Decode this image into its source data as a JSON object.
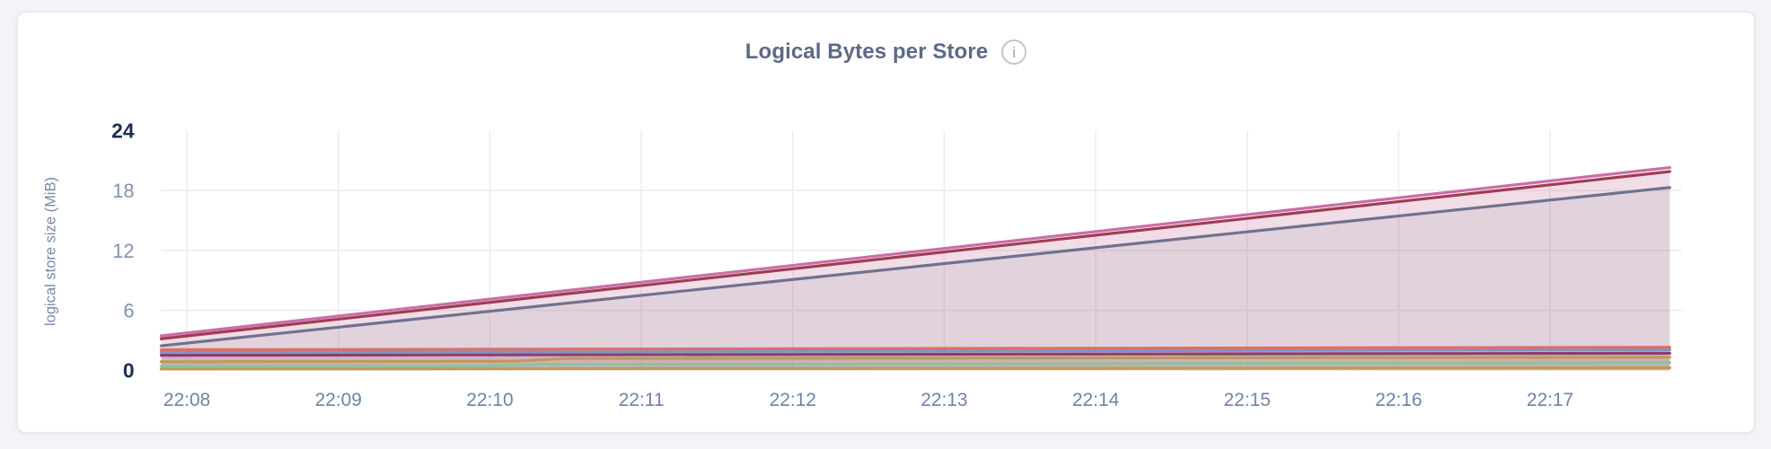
{
  "colors": {
    "page_bg": "#f2f4f8",
    "card_bg": "#ffffff",
    "card_border": "#e4e5e9",
    "title": "#5c6a86",
    "grid": "#ececee",
    "ytick_major": "#1e2f52",
    "ytick_minor": "#8292ab",
    "xtick": "#6d84a4",
    "ylabel": "#7889a9",
    "info_icon_border": "#c5c6cb",
    "info_icon_glyph": "#9b9ca2"
  },
  "icons": {
    "info_glyph": "i"
  },
  "chart_data": {
    "type": "area",
    "title": "Logical Bytes per Store",
    "ylabel": "logical store size (MiB)",
    "xlabel": "",
    "ylim": [
      0,
      24
    ],
    "xlim": [
      7.83,
      17.79
    ],
    "grid": true,
    "legend": false,
    "fill_opacity": 0.1,
    "x_unit": "time (hh:mm), minutes within hour 22",
    "y_ticks": [
      {
        "v": 0,
        "label": "0",
        "major": true,
        "grid": false
      },
      {
        "v": 6,
        "label": "6",
        "major": false,
        "grid": true
      },
      {
        "v": 12,
        "label": "12",
        "major": false,
        "grid": true
      },
      {
        "v": 18,
        "label": "18",
        "major": false,
        "grid": true
      },
      {
        "v": 24,
        "label": "24",
        "major": true,
        "grid": false
      }
    ],
    "x_ticks": [
      {
        "v": 8,
        "label": "22:08"
      },
      {
        "v": 9,
        "label": "22:09"
      },
      {
        "v": 10,
        "label": "22:10"
      },
      {
        "v": 11,
        "label": "22:11"
      },
      {
        "v": 12,
        "label": "22:12"
      },
      {
        "v": 13,
        "label": "22:13"
      },
      {
        "v": 14,
        "label": "22:14"
      },
      {
        "v": 15,
        "label": "22:15"
      },
      {
        "v": 16,
        "label": "22:16"
      },
      {
        "v": 17,
        "label": "22:17"
      }
    ],
    "series": [
      {
        "name": "series-1",
        "color": "#c96fa7",
        "points": [
          [
            7.83,
            3.45
          ],
          [
            17.79,
            20.3
          ]
        ]
      },
      {
        "name": "series-2",
        "color": "#a23b52",
        "points": [
          [
            7.83,
            3.15
          ],
          [
            17.79,
            19.9
          ]
        ]
      },
      {
        "name": "series-3",
        "color": "#70718f",
        "points": [
          [
            7.83,
            2.45
          ],
          [
            17.79,
            18.3
          ]
        ]
      },
      {
        "name": "series-4",
        "color": "#dd6f68",
        "points": [
          [
            7.83,
            2.05
          ],
          [
            17.79,
            2.3
          ]
        ]
      },
      {
        "name": "series-5",
        "color": "#7d95c4",
        "points": [
          [
            7.83,
            1.8
          ],
          [
            17.79,
            2.05
          ]
        ]
      },
      {
        "name": "series-6",
        "color": "#8c3d6e",
        "points": [
          [
            7.83,
            1.5
          ],
          [
            17.79,
            1.7
          ]
        ]
      },
      {
        "name": "series-7",
        "color": "#c09a58",
        "points": [
          [
            7.83,
            0.85
          ],
          [
            10.15,
            0.9
          ],
          [
            10.5,
            1.18
          ],
          [
            17.79,
            1.3
          ]
        ]
      },
      {
        "name": "series-8",
        "color": "#8fc29c",
        "points": [
          [
            7.83,
            0.4
          ],
          [
            9.95,
            0.43
          ],
          [
            10.35,
            0.58
          ],
          [
            17.79,
            0.75
          ]
        ]
      },
      {
        "name": "series-9",
        "color": "#c09a58",
        "points": [
          [
            7.83,
            0.12
          ],
          [
            17.79,
            0.25
          ]
        ]
      }
    ]
  }
}
